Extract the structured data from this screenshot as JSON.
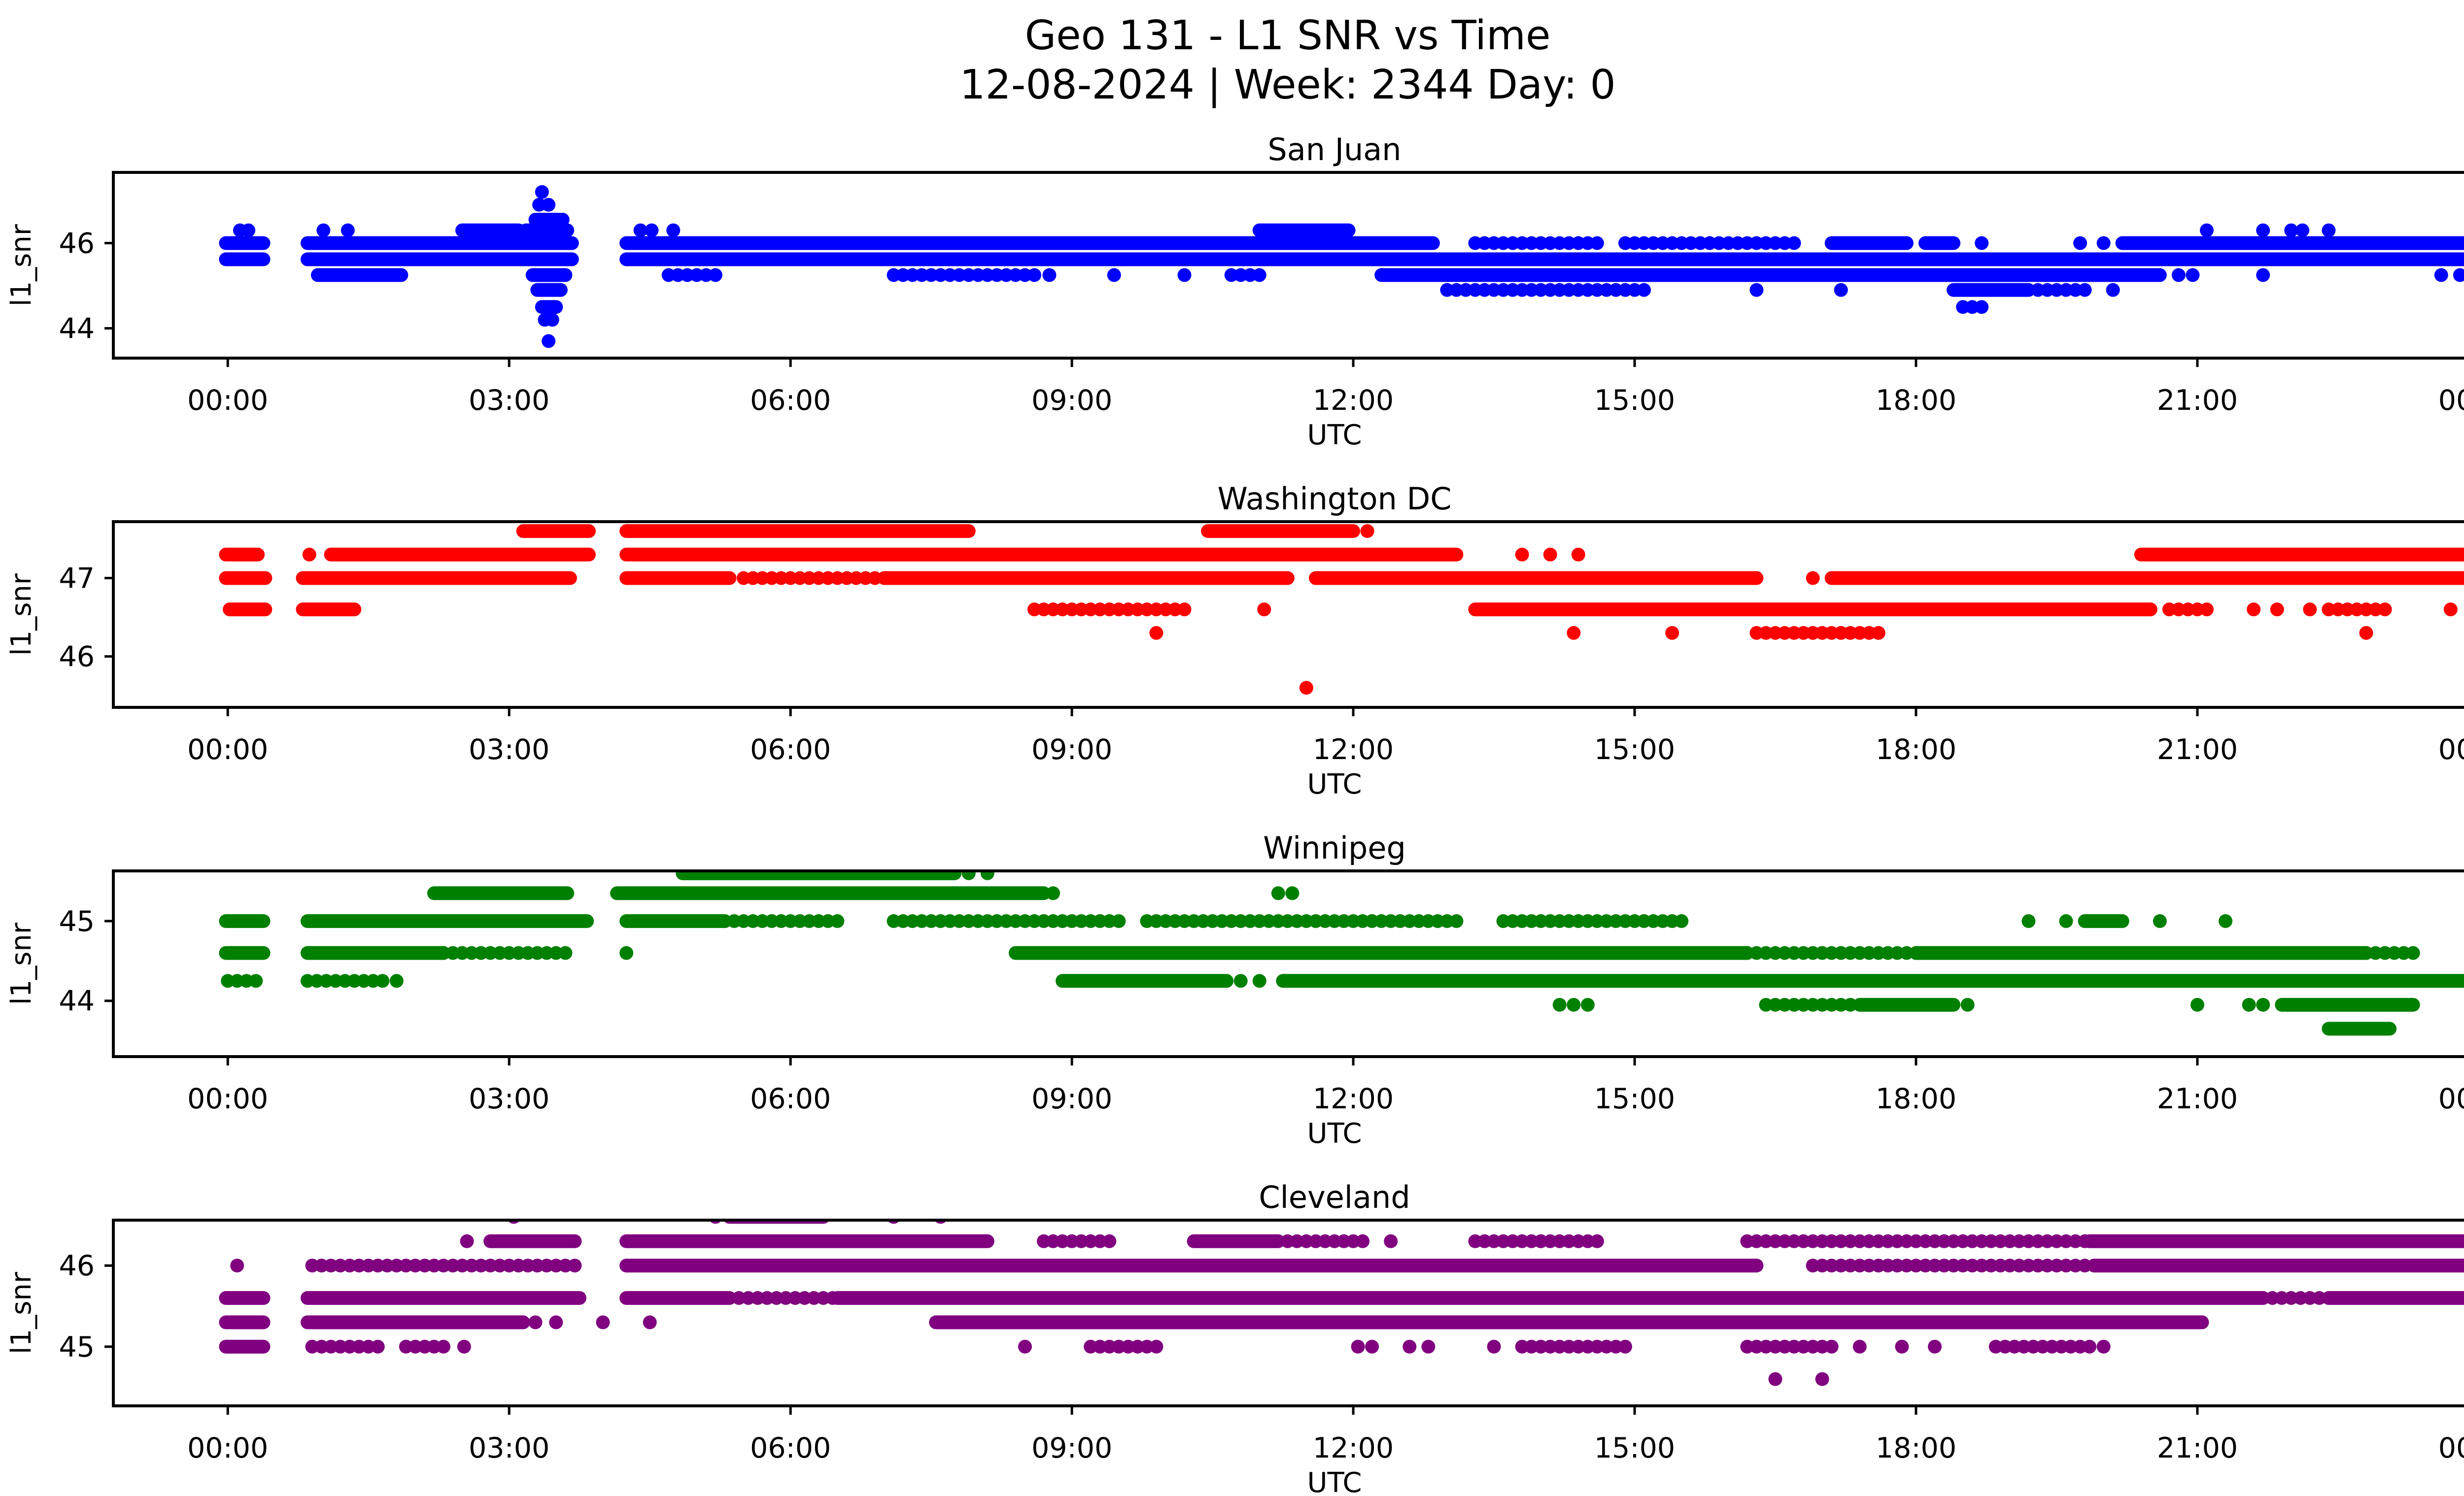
{
  "suptitle": {
    "line1": "Geo 131 - L1 SNR vs Time",
    "line2": "12-08-2024 | Week: 2344 Day: 0"
  },
  "chart_data": {
    "type": "scatter",
    "title": "Geo 131 - L1 SNR vs Time",
    "subtitle": "12-08-2024 | Week: 2344 Day: 0",
    "xlabel": "UTC",
    "ylabel": "l1_snr",
    "grid": false,
    "legend": "none",
    "xlim": [
      -1.22,
      24.82
    ],
    "xticks": [
      0,
      3,
      6,
      9,
      12,
      15,
      18,
      21,
      24
    ],
    "xtick_labels": [
      "00:00",
      "03:00",
      "06:00",
      "09:00",
      "12:00",
      "15:00",
      "18:00",
      "21:00",
      "00:00"
    ],
    "x_unit": "hours UTC",
    "marker_diameter_px": 28,
    "subplots": [
      {
        "title": "San Juan",
        "color": "#0000ff",
        "ylim": [
          43.3,
          47.66
        ],
        "yticks": [
          44,
          46
        ],
        "bands": [
          {
            "y": 47.2,
            "runs": [],
            "sparse": [],
            "dots": [
              3.35
            ]
          },
          {
            "y": 46.9,
            "runs": [],
            "sparse": [],
            "dots": [
              3.32,
              3.42
            ]
          },
          {
            "y": 46.55,
            "runs": [
              [
                3.28,
                3.57
              ]
            ],
            "sparse": [],
            "dots": []
          },
          {
            "y": 46.3,
            "runs": [
              [
                2.5,
                3.1
              ],
              [
                3.18,
                3.62
              ],
              [
                11.0,
                11.95
              ]
            ],
            "sparse": [],
            "dots": [
              0.13,
              0.22,
              1.02,
              1.28,
              4.4,
              4.52,
              4.75,
              21.1,
              21.7,
              22.0,
              22.12,
              22.4
            ]
          },
          {
            "y": 46.0,
            "runs": [
              [
                -0.02,
                0.38
              ],
              [
                0.85,
                3.15
              ],
              [
                3.15,
                3.67
              ],
              [
                4.25,
                12.85
              ],
              [
                17.1,
                17.9
              ],
              [
                18.1,
                18.4
              ],
              [
                20.2,
                23.98
              ]
            ],
            "sparse": [
              [
                13.3,
                14.6
              ],
              [
                14.9,
                16.75
              ]
            ],
            "dots": [
              18.7,
              19.75,
              20.0
            ]
          },
          {
            "y": 45.62,
            "runs": [
              [
                -0.02,
                0.38
              ],
              [
                0.85,
                3.67
              ],
              [
                4.25,
                23.98
              ]
            ],
            "sparse": [],
            "dots": []
          },
          {
            "y": 45.25,
            "runs": [
              [
                0.96,
                1.85
              ],
              [
                3.25,
                3.6
              ],
              [
                12.3,
                20.6
              ]
            ],
            "sparse": [
              [
                4.7,
                5.2
              ],
              [
                7.1,
                8.6
              ],
              [
                10.7,
                11.0
              ]
            ],
            "dots": [
              8.76,
              9.45,
              10.2,
              20.8,
              20.95,
              21.7,
              23.6,
              23.8
            ]
          },
          {
            "y": 44.9,
            "runs": [
              [
                3.3,
                3.55
              ],
              [
                18.4,
                19.2
              ]
            ],
            "sparse": [
              [
                13.0,
                15.1
              ],
              [
                19.3,
                19.8
              ]
            ],
            "dots": [
              16.3,
              17.2,
              20.1
            ]
          },
          {
            "y": 44.5,
            "runs": [
              [
                3.35,
                3.5
              ]
            ],
            "sparse": [],
            "dots": [
              18.5,
              18.6,
              18.7
            ]
          },
          {
            "y": 44.2,
            "runs": [],
            "sparse": [],
            "dots": [
              3.38,
              3.46
            ]
          },
          {
            "y": 43.7,
            "runs": [],
            "sparse": [],
            "dots": [
              3.42
            ]
          }
        ]
      },
      {
        "title": "Washington DC",
        "color": "#ff0000",
        "ylim": [
          45.35,
          47.72
        ],
        "yticks": [
          46,
          47
        ],
        "bands": [
          {
            "y": 47.6,
            "runs": [
              [
                3.15,
                3.85
              ],
              [
                4.25,
                7.9
              ],
              [
                10.45,
                12.0
              ]
            ],
            "sparse": [],
            "dots": [
              12.15
            ]
          },
          {
            "y": 47.3,
            "runs": [
              [
                -0.02,
                0.32
              ],
              [
                1.1,
                3.85
              ],
              [
                4.25,
                13.1
              ],
              [
                20.4,
                23.95
              ]
            ],
            "sparse": [],
            "dots": [
              0.87,
              13.8,
              14.1,
              14.4
            ]
          },
          {
            "y": 47.0,
            "runs": [
              [
                -0.02,
                0.4
              ],
              [
                0.8,
                3.65
              ],
              [
                4.25,
                5.35
              ],
              [
                7.0,
                11.3
              ],
              [
                11.6,
                16.3
              ],
              [
                17.1,
                23.95
              ]
            ],
            "sparse": [
              [
                5.5,
                7.0
              ]
            ],
            "dots": [
              16.9
            ]
          },
          {
            "y": 46.6,
            "runs": [
              [
                0.02,
                0.4
              ],
              [
                0.8,
                1.35
              ],
              [
                13.3,
                20.5
              ]
            ],
            "sparse": [
              [
                8.6,
                10.2
              ],
              [
                20.7,
                21.1
              ],
              [
                22.4,
                23.0
              ]
            ],
            "dots": [
              11.05,
              21.6,
              21.85,
              22.2,
              23.7,
              23.95
            ]
          },
          {
            "y": 46.3,
            "runs": [],
            "sparse": [
              [
                16.3,
                17.6
              ]
            ],
            "dots": [
              9.9,
              14.35,
              15.4,
              22.8
            ]
          },
          {
            "y": 45.6,
            "runs": [],
            "sparse": [],
            "dots": [
              11.5
            ]
          }
        ]
      },
      {
        "title": "Winnipeg",
        "color": "#008000",
        "ylim": [
          43.3,
          45.63
        ],
        "yticks": [
          44,
          45
        ],
        "bands": [
          {
            "y": 45.6,
            "runs": [
              [
                4.85,
                7.75
              ]
            ],
            "sparse": [],
            "dots": [
              7.9,
              8.1
            ]
          },
          {
            "y": 45.35,
            "runs": [
              [
                2.2,
                3.62
              ],
              [
                4.15,
                8.7
              ]
            ],
            "sparse": [],
            "dots": [
              8.8,
              11.2,
              11.35
            ]
          },
          {
            "y": 45.0,
            "runs": [
              [
                -0.02,
                0.38
              ],
              [
                0.85,
                3.83
              ],
              [
                4.25,
                5.3
              ],
              [
                19.8,
                20.2
              ]
            ],
            "sparse": [
              [
                5.3,
                6.5
              ],
              [
                7.1,
                9.5
              ],
              [
                9.8,
                13.1
              ],
              [
                13.6,
                15.5
              ]
            ],
            "dots": [
              19.2,
              19.6,
              20.6,
              21.3
            ]
          },
          {
            "y": 44.6,
            "runs": [
              [
                -0.02,
                0.38
              ],
              [
                0.85,
                2.3
              ],
              [
                8.4,
                16.2
              ],
              [
                18.0,
                22.8
              ]
            ],
            "sparse": [
              [
                2.3,
                3.6
              ],
              [
                16.2,
                18.0
              ],
              [
                22.8,
                23.3
              ]
            ],
            "dots": [
              4.25
            ]
          },
          {
            "y": 44.25,
            "runs": [
              [
                8.9,
                10.65
              ],
              [
                11.25,
                23.9
              ]
            ],
            "sparse": [
              [
                0.0,
                0.3
              ],
              [
                0.85,
                1.65
              ]
            ],
            "dots": [
              1.8,
              10.8,
              11.0
            ]
          },
          {
            "y": 43.95,
            "runs": [
              [
                17.4,
                18.4
              ],
              [
                21.9,
                23.3
              ]
            ],
            "sparse": [
              [
                16.4,
                17.3
              ]
            ],
            "dots": [
              14.2,
              14.35,
              14.5,
              18.55,
              21.0,
              21.55,
              21.7
            ]
          },
          {
            "y": 43.65,
            "runs": [
              [
                22.4,
                23.05
              ]
            ],
            "sparse": [],
            "dots": []
          }
        ]
      },
      {
        "title": "Cleveland",
        "color": "#800080",
        "ylim": [
          44.27,
          46.56
        ],
        "yticks": [
          45,
          46
        ],
        "bands": [
          {
            "y": 46.6,
            "runs": [
              [
                5.35,
                6.35
              ]
            ],
            "sparse": [],
            "dots": [
              3.05,
              5.2,
              7.1,
              7.6
            ]
          },
          {
            "y": 46.3,
            "runs": [
              [
                2.8,
                3.7
              ],
              [
                4.25,
                8.1
              ],
              [
                10.3,
                11.2
              ],
              [
                19.85,
                23.95
              ]
            ],
            "sparse": [
              [
                8.7,
                9.4
              ],
              [
                11.3,
                12.1
              ],
              [
                13.3,
                14.6
              ],
              [
                16.2,
                17.0
              ],
              [
                17.1,
                19.85
              ]
            ],
            "dots": [
              2.55,
              12.4,
              14.0
            ]
          },
          {
            "y": 46.0,
            "runs": [
              [
                4.25,
                16.3
              ],
              [
                19.9,
                23.95
              ]
            ],
            "sparse": [
              [
                0.9,
                3.75
              ],
              [
                16.9,
                19.9
              ]
            ],
            "dots": [
              0.1
            ]
          },
          {
            "y": 45.6,
            "runs": [
              [
                -0.02,
                0.38
              ],
              [
                0.85,
                3.75
              ],
              [
                4.25,
                5.35
              ],
              [
                6.5,
                21.7
              ],
              [
                22.4,
                23.95
              ]
            ],
            "sparse": [
              [
                5.45,
                6.5
              ],
              [
                21.7,
                22.4
              ]
            ],
            "dots": []
          },
          {
            "y": 45.3,
            "runs": [
              [
                -0.02,
                0.38
              ],
              [
                0.85,
                3.15
              ],
              [
                7.55,
                21.05
              ]
            ],
            "sparse": [],
            "dots": [
              3.28,
              3.5,
              4.0,
              4.5
            ]
          },
          {
            "y": 45.0,
            "runs": [
              [
                -0.02,
                0.38
              ]
            ],
            "sparse": [
              [
                0.9,
                1.65
              ],
              [
                1.9,
                2.3
              ],
              [
                9.2,
                9.9
              ],
              [
                13.8,
                14.9
              ],
              [
                16.2,
                17.1
              ],
              [
                18.85,
                19.85
              ]
            ],
            "dots": [
              2.52,
              8.5,
              12.05,
              12.2,
              12.6,
              12.8,
              13.5,
              17.4,
              17.85,
              18.2,
              20.0
            ]
          },
          {
            "y": 44.6,
            "runs": [],
            "sparse": [],
            "dots": [
              16.5,
              17.0
            ]
          }
        ]
      }
    ]
  }
}
